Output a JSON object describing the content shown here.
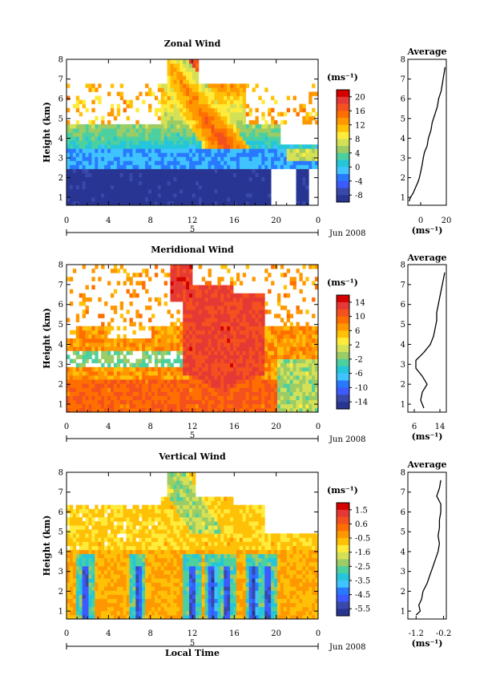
{
  "chart_data": [
    {
      "type": "heatmap",
      "title": "Zonal Wind",
      "ylabel": "Height (km)",
      "xlabel": "",
      "xticks": [
        "0",
        "4",
        "8",
        "12",
        "16",
        "20",
        "0"
      ],
      "yticks": [
        "1",
        "2",
        "3",
        "4",
        "5",
        "6",
        "7",
        "8"
      ],
      "xlim": [
        0,
        24
      ],
      "ylim": [
        0.6,
        8
      ],
      "date_marker": "5",
      "date_label": "Jun 2008",
      "colorbar": {
        "unit": "(ms⁻¹)",
        "ticks": [
          "20",
          "16",
          "12",
          "8",
          "4",
          "0",
          "-4",
          "-8"
        ],
        "range": [
          -10,
          22
        ]
      },
      "profile": {
        "title": "Average",
        "xticks": [
          "0",
          "20"
        ],
        "xunit": "(ms⁻¹)",
        "xlim": [
          -10,
          20
        ],
        "height": [
          0.8,
          1.0,
          1.2,
          1.5,
          1.8,
          2.0,
          2.3,
          2.6,
          3.0,
          3.3,
          3.6,
          4.0,
          4.4,
          4.8,
          5.2,
          5.6,
          6.0,
          6.4,
          6.8,
          7.2,
          7.6
        ],
        "values": [
          -9,
          -8,
          -6,
          -4,
          -2,
          -1,
          0,
          1,
          2,
          3,
          5,
          6,
          8,
          9,
          11,
          13,
          14,
          16,
          17,
          18,
          19
        ]
      }
    },
    {
      "type": "heatmap",
      "title": "Meridional Wind",
      "ylabel": "Height (km)",
      "xlabel": "",
      "xticks": [
        "0",
        "4",
        "8",
        "12",
        "16",
        "20",
        "0"
      ],
      "yticks": [
        "1",
        "2",
        "3",
        "4",
        "5",
        "6",
        "7",
        "8"
      ],
      "xlim": [
        0,
        24
      ],
      "ylim": [
        0.6,
        8
      ],
      "date_marker": "5",
      "date_label": "Jun 2008",
      "colorbar": {
        "unit": "(ms⁻¹)",
        "ticks": [
          "14",
          "10",
          "6",
          "2",
          "-2",
          "-6",
          "-10",
          "-14"
        ],
        "range": [
          -16,
          16
        ]
      },
      "profile": {
        "title": "Average",
        "xticks": [
          "6",
          "14"
        ],
        "xunit": "(ms⁻¹)",
        "xlim": [
          4,
          16
        ],
        "height": [
          0.8,
          1.2,
          1.6,
          2.0,
          2.4,
          2.8,
          3.2,
          3.6,
          4.0,
          4.4,
          4.8,
          5.2,
          5.6,
          6.0,
          6.4,
          6.8,
          7.2,
          7.6
        ],
        "values": [
          9,
          8,
          8.5,
          10,
          8.5,
          6.5,
          6.5,
          9,
          11,
          12,
          12.5,
          13,
          13,
          13.5,
          14,
          14.5,
          15,
          15.5
        ]
      }
    },
    {
      "type": "heatmap",
      "title": "Vertical Wind",
      "ylabel": "Height (km)",
      "xlabel": "Local Time",
      "xticks": [
        "0",
        "4",
        "8",
        "12",
        "16",
        "20",
        "0"
      ],
      "yticks": [
        "1",
        "2",
        "3",
        "4",
        "5",
        "6",
        "7",
        "8"
      ],
      "xlim": [
        0,
        24
      ],
      "ylim": [
        0.6,
        8
      ],
      "date_marker": "5",
      "date_label": "Jun 2008",
      "colorbar": {
        "unit": "(ms⁻¹)",
        "ticks": [
          "1.5",
          "0.6",
          "-0.5",
          "-1.6",
          "-2.5",
          "-3.5",
          "-4.5",
          "-5.5"
        ],
        "range": [
          -6,
          2
        ]
      },
      "profile": {
        "title": "Average",
        "xticks": [
          "-1.2",
          "-0.2"
        ],
        "xunit": "(ms⁻¹)",
        "xlim": [
          -1.5,
          -0.1
        ],
        "height": [
          0.8,
          1.0,
          1.3,
          1.6,
          2.0,
          2.4,
          2.8,
          3.2,
          3.6,
          4.0,
          4.4,
          4.8,
          5.2,
          5.6,
          6.0,
          6.4,
          6.8,
          7.2,
          7.6
        ],
        "values": [
          -1.2,
          -1.05,
          -1.1,
          -1.0,
          -0.95,
          -0.8,
          -0.7,
          -0.6,
          -0.5,
          -0.4,
          -0.35,
          -0.4,
          -0.35,
          -0.35,
          -0.3,
          -0.3,
          -0.45,
          -0.35,
          -0.3
        ]
      }
    }
  ]
}
